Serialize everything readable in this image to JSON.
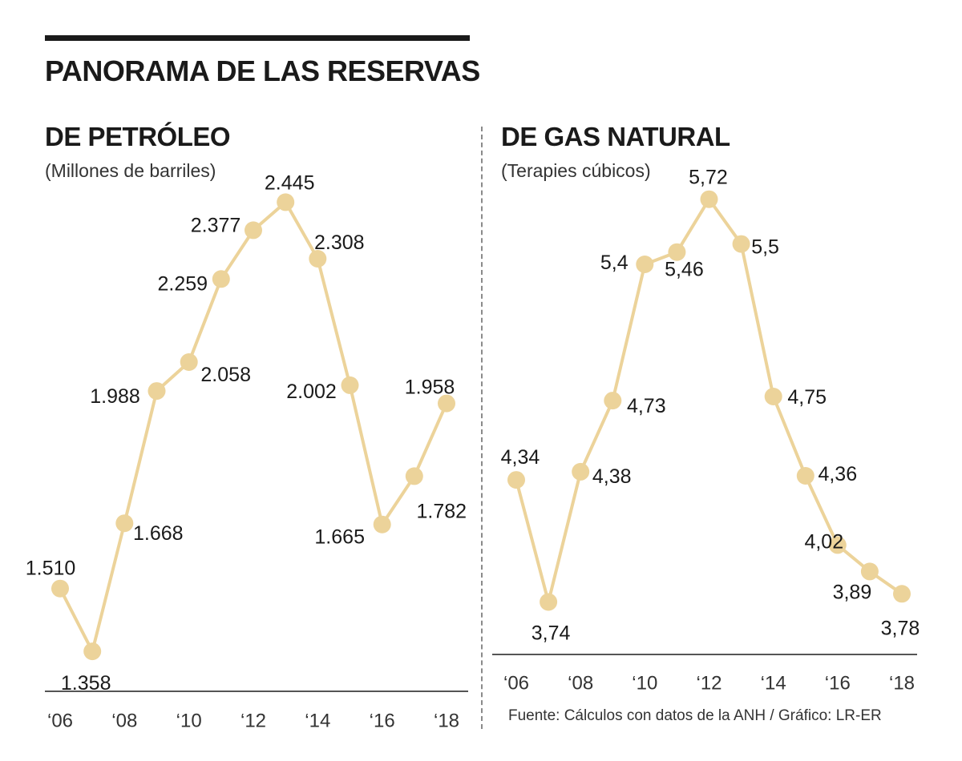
{
  "title": "PANORAMA DE LAS RESERVAS",
  "source": "Fuente: Cálculos con datos de la ANH / Gráfico: LR-ER",
  "colors": {
    "line": "#ecd39a",
    "marker": "#ecd39a",
    "text": "#1a1a1a"
  },
  "panels": {
    "oil": {
      "title": "DE PETRÓLEO",
      "unit": "(Millones de barriles)"
    },
    "gas": {
      "title": "DE GAS NATURAL",
      "unit": "(Terapies cúbicos)"
    }
  },
  "chart_data": [
    {
      "type": "line",
      "title": "DE PETRÓLEO",
      "ylabel": "Millones de barriles",
      "x": [
        2006,
        2007,
        2008,
        2009,
        2010,
        2011,
        2012,
        2013,
        2014,
        2015,
        2016,
        2017,
        2018
      ],
      "values": [
        1510,
        1358,
        1668,
        1988,
        2058,
        2259,
        2377,
        2445,
        2308,
        2002,
        1665,
        1782,
        1958
      ],
      "value_labels": [
        "1.510",
        "1.358",
        "1.668",
        "1.988",
        "2.058",
        "2.259",
        "2.377",
        "2.445",
        "2.308",
        "2.002",
        "1.665",
        "1.782",
        "1.958"
      ],
      "tick_labels": [
        "‘06",
        "‘08",
        "‘10",
        "‘12",
        "‘14",
        "‘16",
        "‘18"
      ],
      "ylim": [
        1300,
        2500
      ]
    },
    {
      "type": "line",
      "title": "DE GAS NATURAL",
      "ylabel": "Terapies cúbicos",
      "x": [
        2006,
        2007,
        2008,
        2009,
        2010,
        2011,
        2012,
        2013,
        2014,
        2015,
        2016,
        2017,
        2018
      ],
      "values": [
        4.34,
        3.74,
        4.38,
        4.73,
        5.4,
        5.46,
        5.72,
        5.5,
        4.75,
        4.36,
        4.02,
        3.89,
        3.78
      ],
      "value_labels": [
        "4,34",
        "3,74",
        "4,38",
        "4,73",
        "5,4",
        "5,46",
        "5,72",
        "5,5",
        "4,75",
        "4,36",
        "4,02",
        "3,89",
        "3,78"
      ],
      "tick_labels": [
        "‘06",
        "‘08",
        "‘10",
        "‘12",
        "‘14",
        "‘16",
        "‘18"
      ],
      "ylim": [
        3.6,
        5.9
      ]
    }
  ]
}
